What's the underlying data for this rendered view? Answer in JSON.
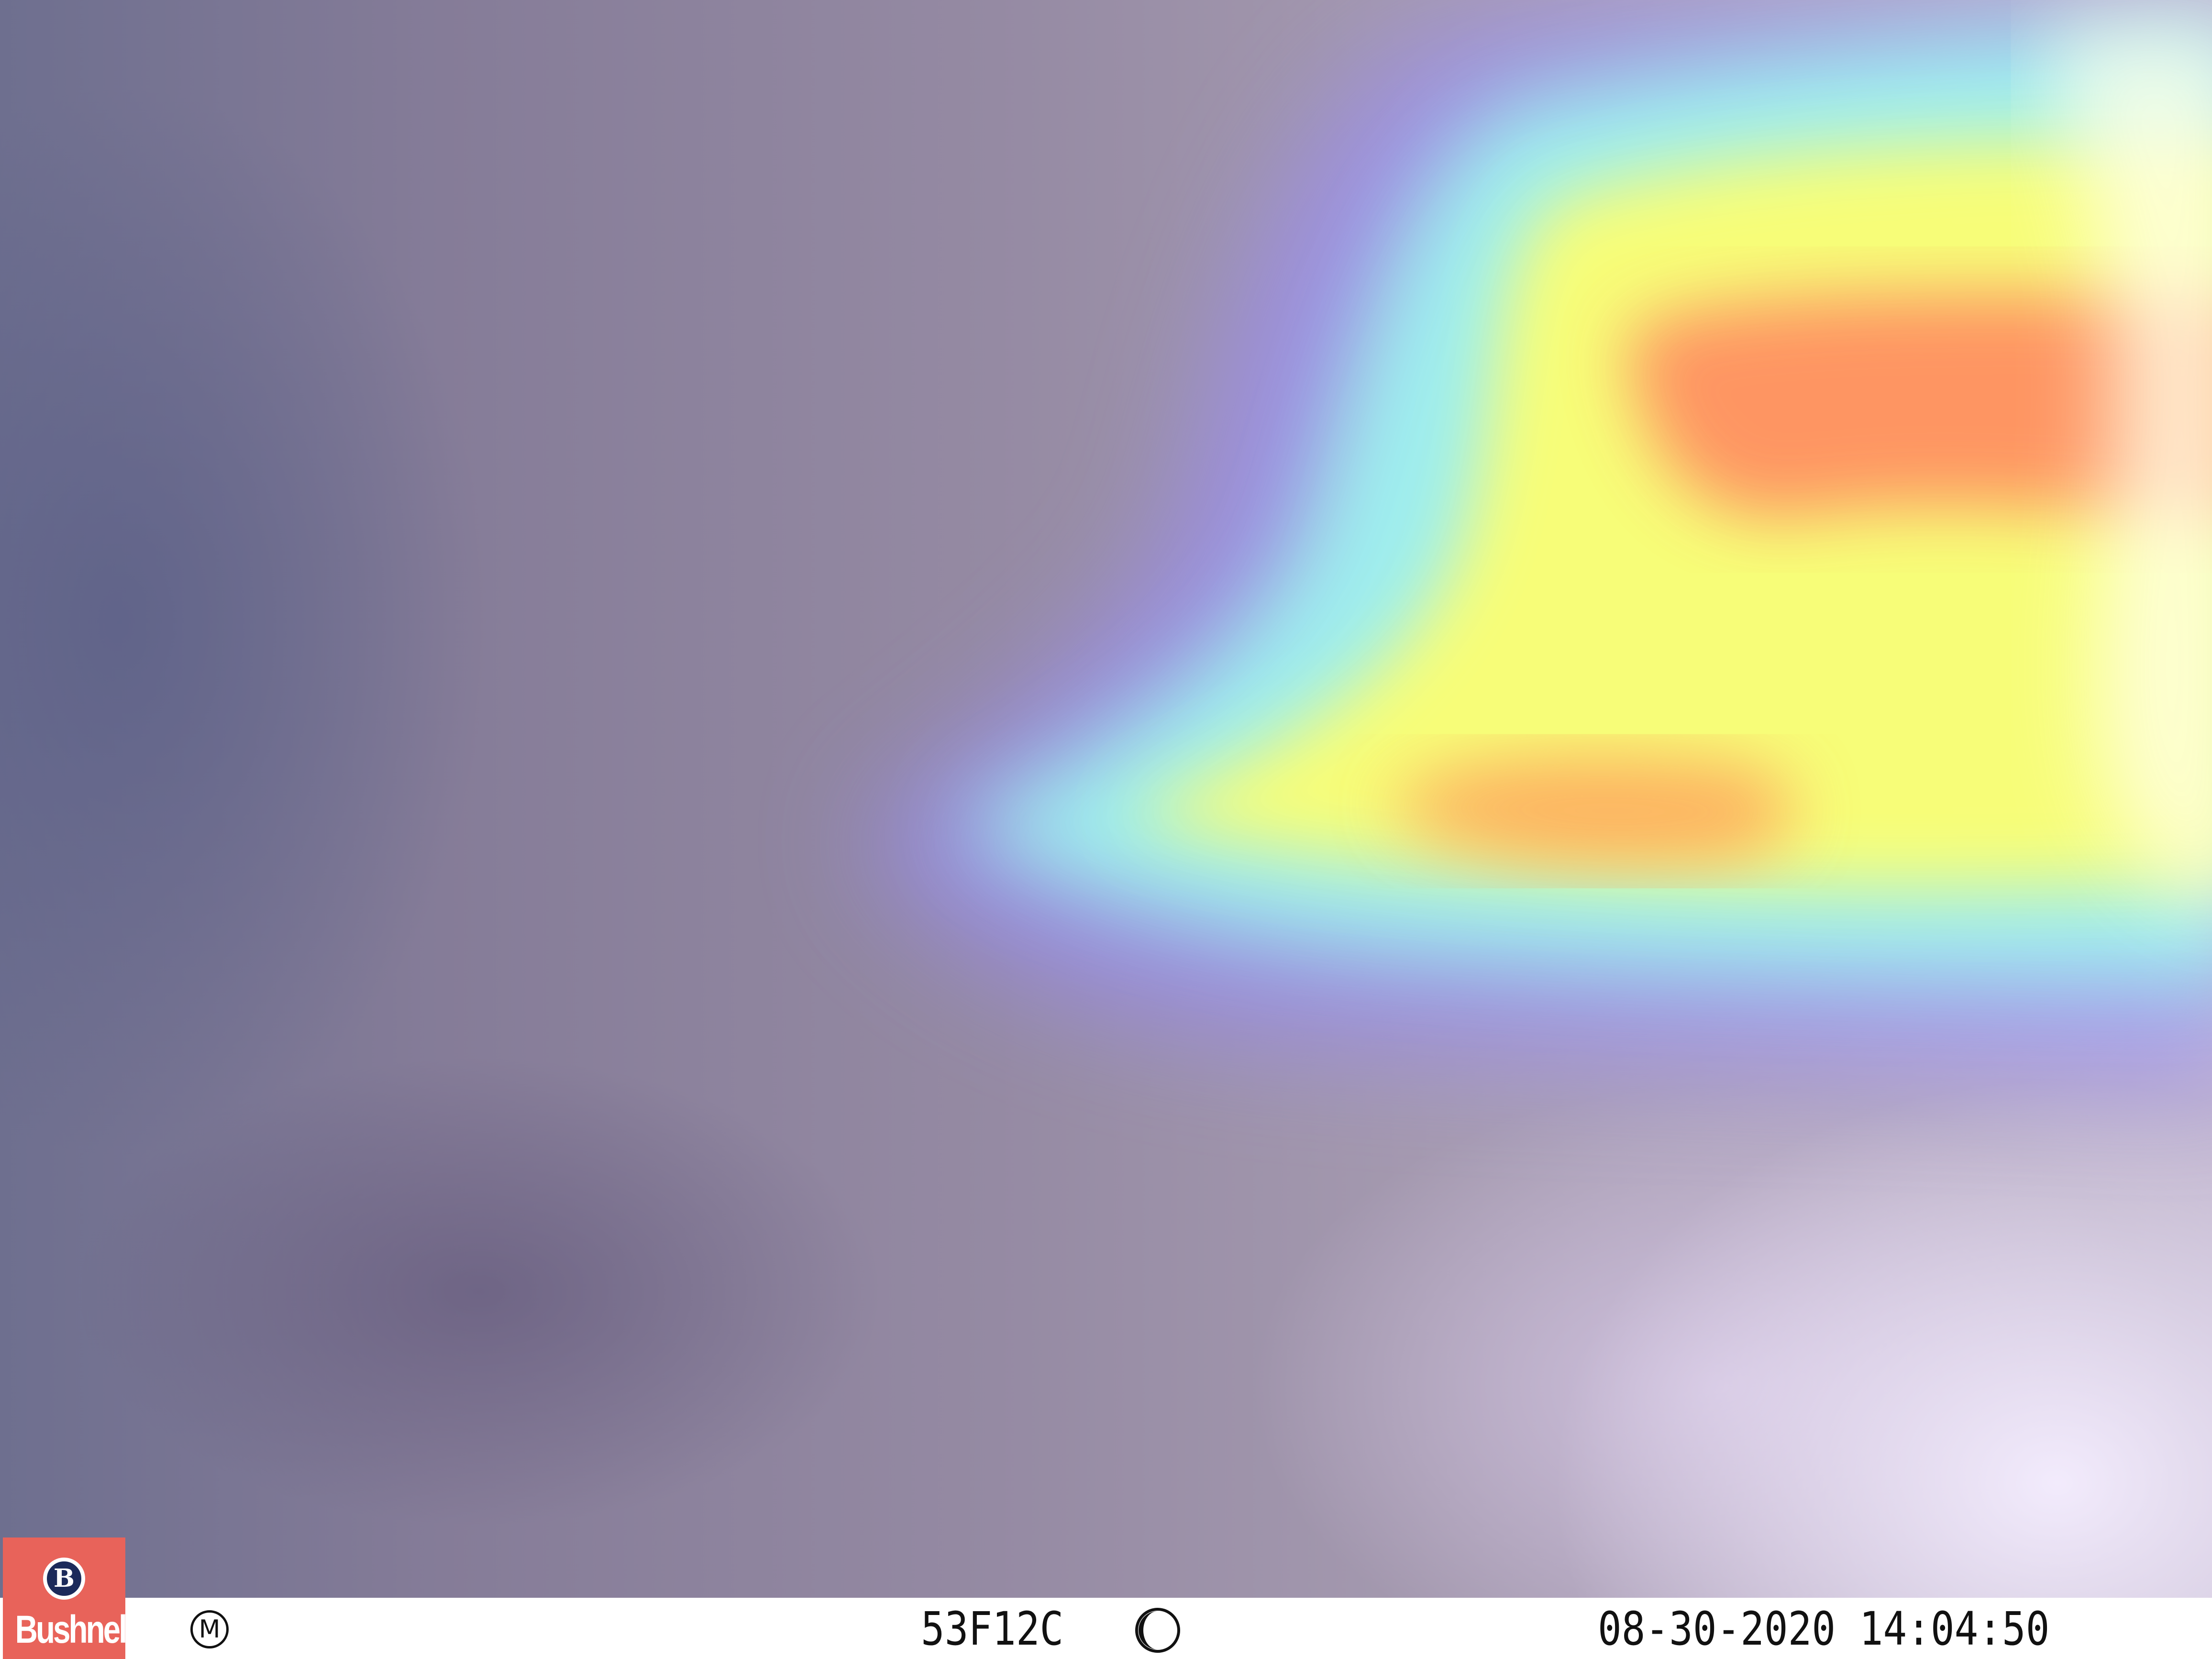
{
  "photo": {
    "description_icon": "heatmap-overlay",
    "colors": {
      "hot": "#ff8060",
      "warm": "#ffff70",
      "mid": "#9efff0",
      "cool": "#9b8cff",
      "background": "#8f8499"
    }
  },
  "footer": {
    "brand": "Bushnell",
    "brand_mark": "B",
    "mode_icon": "M",
    "camera_id": "53F12C",
    "moon_phase_icon": "moon-icon",
    "date": "08-30-2020",
    "time": "14:04:50",
    "datetime_text": "08-30-2020  14:04:50"
  }
}
